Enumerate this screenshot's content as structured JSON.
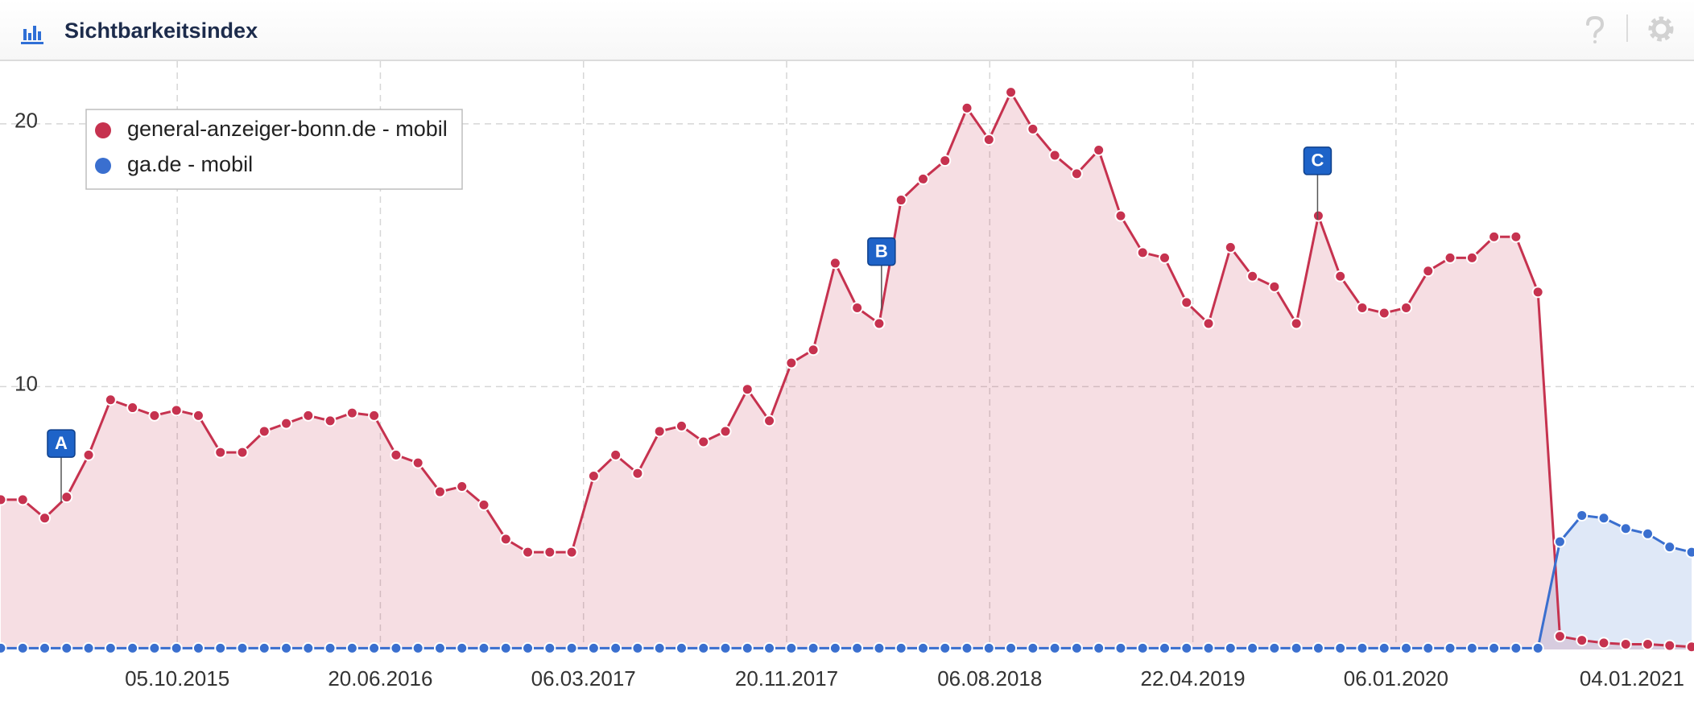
{
  "chart_data": {
    "type": "line",
    "title": "Sichtbarkeitsindex",
    "x": [
      "2015-02-22",
      "2015-03-22",
      "2015-04-19",
      "2015-05-17",
      "2015-06-14",
      "2015-07-12",
      "2015-08-09",
      "2015-09-06",
      "2015-10-04",
      "2015-11-01",
      "2015-11-29",
      "2015-12-27",
      "2016-01-24",
      "2016-02-21",
      "2016-03-20",
      "2016-04-17",
      "2016-05-15",
      "2016-06-12",
      "2016-07-10",
      "2016-08-07",
      "2016-09-04",
      "2016-10-02",
      "2016-10-30",
      "2016-11-27",
      "2016-12-25",
      "2017-01-22",
      "2017-02-19",
      "2017-03-19",
      "2017-04-16",
      "2017-05-14",
      "2017-06-11",
      "2017-07-09",
      "2017-08-06",
      "2017-09-03",
      "2017-10-01",
      "2017-10-29",
      "2017-11-26",
      "2017-12-24",
      "2018-01-21",
      "2018-02-18",
      "2018-03-18",
      "2018-04-15",
      "2018-05-13",
      "2018-06-10",
      "2018-07-08",
      "2018-08-05",
      "2018-09-02",
      "2018-09-30",
      "2018-10-28",
      "2018-11-25",
      "2018-12-23",
      "2019-01-20",
      "2019-02-17",
      "2019-03-17",
      "2019-04-14",
      "2019-05-12",
      "2019-06-09",
      "2019-07-07",
      "2019-08-04",
      "2019-09-01",
      "2019-09-29",
      "2019-10-27",
      "2019-11-24",
      "2019-12-22",
      "2020-01-19",
      "2020-02-16",
      "2020-03-15",
      "2020-04-12",
      "2020-05-10",
      "2020-06-07",
      "2020-07-05",
      "2020-08-02",
      "2020-08-30",
      "2020-09-27",
      "2020-10-25",
      "2020-11-22",
      "2020-12-20",
      "2021-01-17"
    ],
    "series": [
      {
        "name": "general-anzeiger-bonn.de - mobil",
        "color": "#c6324f",
        "values": [
          5.7,
          5.7,
          5.0,
          5.8,
          7.4,
          9.5,
          9.2,
          8.9,
          9.1,
          8.9,
          7.5,
          7.5,
          8.3,
          8.6,
          8.9,
          8.7,
          9.0,
          8.9,
          7.4,
          7.1,
          6.0,
          6.2,
          5.5,
          4.2,
          3.7,
          3.7,
          3.7,
          6.6,
          7.4,
          6.7,
          8.3,
          8.5,
          7.9,
          8.3,
          9.9,
          8.7,
          10.9,
          11.4,
          14.7,
          13.0,
          12.4,
          17.1,
          17.9,
          18.6,
          20.6,
          19.4,
          21.2,
          19.8,
          18.8,
          18.1,
          19.0,
          16.5,
          15.1,
          14.9,
          13.2,
          12.4,
          15.3,
          14.2,
          13.8,
          12.4,
          16.5,
          14.2,
          13.0,
          12.8,
          13.0,
          14.4,
          14.9,
          14.9,
          15.7,
          15.7,
          13.6,
          0.5,
          0.35,
          0.25,
          0.2,
          0.2,
          0.15,
          0.1
        ]
      },
      {
        "name": "ga.de - mobil",
        "color": "#3a6fcf",
        "values": [
          0.05,
          0.05,
          0.05,
          0.05,
          0.05,
          0.05,
          0.05,
          0.05,
          0.05,
          0.05,
          0.05,
          0.05,
          0.05,
          0.05,
          0.05,
          0.05,
          0.05,
          0.05,
          0.05,
          0.05,
          0.05,
          0.05,
          0.05,
          0.05,
          0.05,
          0.05,
          0.05,
          0.05,
          0.05,
          0.05,
          0.05,
          0.05,
          0.05,
          0.05,
          0.05,
          0.05,
          0.05,
          0.05,
          0.05,
          0.05,
          0.05,
          0.05,
          0.05,
          0.05,
          0.05,
          0.05,
          0.05,
          0.05,
          0.05,
          0.05,
          0.05,
          0.05,
          0.05,
          0.05,
          0.05,
          0.05,
          0.05,
          0.05,
          0.05,
          0.05,
          0.05,
          0.05,
          0.05,
          0.05,
          0.05,
          0.05,
          0.05,
          0.05,
          0.05,
          0.05,
          0.05,
          4.1,
          5.1,
          5.0,
          4.6,
          4.4,
          3.9,
          3.7
        ]
      }
    ],
    "xlim": [
      "2015-02-21",
      "2021-01-20"
    ],
    "ylim": [
      0,
      22.2
    ],
    "xticks": [
      {
        "value": "2015-10-05",
        "label": "05.10.2015"
      },
      {
        "value": "2016-06-20",
        "label": "20.06.2016"
      },
      {
        "value": "2017-03-06",
        "label": "06.03.2017"
      },
      {
        "value": "2017-11-20",
        "label": "20.11.2017"
      },
      {
        "value": "2018-08-06",
        "label": "06.08.2018"
      },
      {
        "value": "2019-04-22",
        "label": "22.04.2019"
      },
      {
        "value": "2020-01-06",
        "label": "06.01.2020"
      },
      {
        "value": "2021-01-04",
        "label": "04.01.2021"
      }
    ],
    "yticks": [
      10,
      20
    ],
    "grid": true,
    "area": true,
    "annotations": [
      {
        "label": "A",
        "x": "2015-05-10"
      },
      {
        "label": "B",
        "x": "2018-03-21"
      },
      {
        "label": "C",
        "x": "2019-09-28"
      }
    ]
  }
}
